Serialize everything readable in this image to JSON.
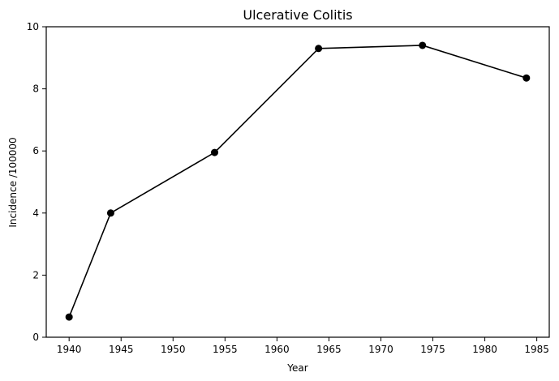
{
  "chart_data": {
    "type": "line",
    "title": "Ulcerative Colitis",
    "xlabel": "Year",
    "ylabel": "Incidence /100000",
    "x": [
      1940,
      1944,
      1954,
      1964,
      1974,
      1984
    ],
    "series": [
      {
        "values": [
          0.65,
          4.0,
          5.95,
          9.3,
          9.4,
          8.35
        ],
        "color": "#000000",
        "marker": "circle"
      }
    ],
    "xlim": [
      1937.8,
      1986.2
    ],
    "ylim": [
      0,
      10
    ],
    "xticks": [
      1940,
      1945,
      1950,
      1955,
      1960,
      1965,
      1970,
      1975,
      1980,
      1985
    ],
    "yticks": [
      0,
      2,
      4,
      6,
      8,
      10
    ],
    "grid": false,
    "legend": false
  }
}
